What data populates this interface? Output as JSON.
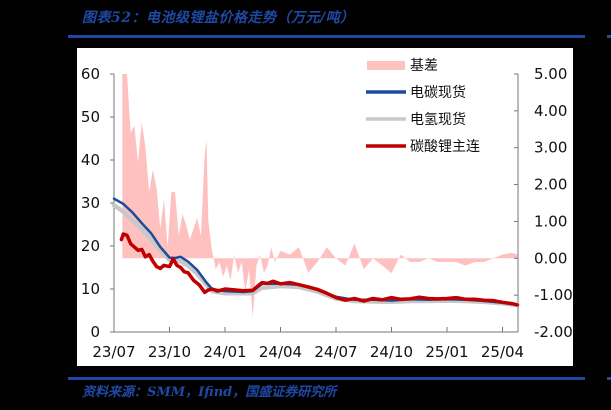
{
  "title": "图表52：电池级锂盐价格走势（万元/吨）",
  "source": "资料来源：SMM，Ifind，国盛证券研究所",
  "colors": {
    "accent": "#1f48a3",
    "basis": "#ffc0c0",
    "carbonate_spot": "#1a4da0",
    "hydroxide_spot": "#c8c8c8",
    "futures": "#c00000"
  },
  "chart_data": {
    "type": "line",
    "title": "电池级锂盐价格走势（万元/吨）",
    "xlabel": "",
    "ylabel_left": "万元/吨",
    "ylabel_right": "基差",
    "x_ticks": [
      "23/07",
      "23/10",
      "24/01",
      "24/04",
      "24/07",
      "24/10",
      "25/01",
      "25/04"
    ],
    "ylim_left": [
      0,
      60
    ],
    "yticks_left": [
      "0",
      "10",
      "20",
      "30",
      "40",
      "50",
      "60"
    ],
    "ylim_right": [
      -2,
      5
    ],
    "yticks_right": [
      "-2.00",
      "-1.00",
      "0.00",
      "1.00",
      "2.00",
      "3.00",
      "4.00",
      "5.00"
    ],
    "legend": [
      "基差",
      "电碳现货",
      "电氢现货",
      "碳酸锂主连"
    ],
    "legend_position": "upper right",
    "grid": false,
    "x_months_from_2307": true,
    "series": [
      {
        "name": "基差",
        "type": "area",
        "axis": "right",
        "x": [
          0.45,
          0.5,
          0.7,
          0.9,
          1.1,
          1.3,
          1.5,
          1.7,
          1.9,
          2.1,
          2.3,
          2.5,
          2.7,
          2.9,
          3.1,
          3.3,
          3.5,
          3.7,
          3.9,
          4.1,
          4.3,
          4.5,
          4.7,
          4.9,
          5.0,
          5.1,
          5.3,
          5.5,
          5.7,
          5.9,
          6.1,
          6.3,
          6.5,
          6.7,
          6.9,
          7.1,
          7.3,
          7.5,
          7.7,
          7.9,
          8.1,
          8.3,
          8.5,
          8.7,
          9.0,
          9.5,
          10.0,
          10.5,
          11.0,
          11.5,
          12.0,
          12.5,
          13.0,
          13.5,
          14.0,
          14.5,
          15.0,
          15.5,
          16.0,
          16.5,
          17.0,
          17.5,
          18.0,
          18.5,
          19.0,
          19.5,
          20.0,
          20.5,
          21.0,
          21.5,
          21.8
        ],
        "values": [
          5.0,
          5.0,
          5.0,
          3.4,
          3.6,
          2.6,
          3.7,
          3.0,
          1.8,
          2.4,
          1.9,
          0.8,
          1.6,
          0.3,
          1.8,
          1.8,
          0.6,
          1.2,
          0.9,
          0.5,
          0.8,
          1.1,
          0.6,
          2.8,
          3.2,
          1.0,
          0.2,
          -0.3,
          -0.1,
          -0.5,
          -0.2,
          -0.6,
          0.1,
          -0.4,
          -0.1,
          -0.9,
          -0.3,
          -1.6,
          -0.2,
          0.1,
          -0.4,
          -0.2,
          0.3,
          -0.1,
          0.2,
          0.1,
          0.3,
          -0.4,
          -0.1,
          0.3,
          0.0,
          -0.2,
          0.4,
          -0.3,
          0.0,
          -0.2,
          -0.4,
          0.1,
          -0.1,
          -0.1,
          0.0,
          -0.1,
          -0.1,
          -0.1,
          -0.2,
          -0.1,
          -0.1,
          0.0,
          0.1,
          0.15,
          0.1
        ]
      },
      {
        "name": "电氢现货",
        "type": "line",
        "axis": "left",
        "x": [
          0,
          0.5,
          1.0,
          1.5,
          2.0,
          2.5,
          3.0,
          3.3,
          3.6,
          4.0,
          4.5,
          5.0,
          5.3,
          6.0,
          7.0,
          7.5,
          8.0,
          9.0,
          10.0,
          11.0,
          12.0,
          13.0,
          14.0,
          15.0,
          16.0,
          17.0,
          18.0,
          19.0,
          20.0,
          21.0,
          21.8
        ],
        "values": [
          29.5,
          28.0,
          26.0,
          24.0,
          21.5,
          19.0,
          16.8,
          16.5,
          16.5,
          15.5,
          13.5,
          11.0,
          9.5,
          9.0,
          9.0,
          9.0,
          10.3,
          10.7,
          10.5,
          9.4,
          7.8,
          7.2,
          7.1,
          7.0,
          7.2,
          7.2,
          7.3,
          7.2,
          7.0,
          6.7,
          6.3
        ]
      },
      {
        "name": "电碳现货",
        "type": "line",
        "axis": "left",
        "x": [
          0,
          0.5,
          1.0,
          1.5,
          2.0,
          2.5,
          3.0,
          3.3,
          3.6,
          4.0,
          4.5,
          5.0,
          5.3,
          6.0,
          7.0,
          7.5,
          8.0,
          9.0,
          10.0,
          11.0,
          12.0,
          13.0,
          14.0,
          15.0,
          16.0,
          17.0,
          18.0,
          19.0,
          20.0,
          21.0,
          21.8
        ],
        "values": [
          31.0,
          29.8,
          27.8,
          25.3,
          23.0,
          19.8,
          17.3,
          17.2,
          17.5,
          16.4,
          14.4,
          11.5,
          10.0,
          9.5,
          9.3,
          9.5,
          11.2,
          11.2,
          11.0,
          9.8,
          8.2,
          7.5,
          7.5,
          7.3,
          7.6,
          7.5,
          7.6,
          7.5,
          7.2,
          6.8,
          6.3
        ]
      },
      {
        "name": "碳酸锂主连",
        "type": "line",
        "axis": "left",
        "x": [
          0.4,
          0.5,
          0.7,
          0.9,
          1.1,
          1.3,
          1.5,
          1.7,
          1.9,
          2.1,
          2.3,
          2.5,
          2.7,
          3.0,
          3.2,
          3.4,
          3.6,
          3.8,
          4.0,
          4.3,
          4.6,
          4.9,
          5.1,
          5.3,
          5.6,
          6.0,
          6.5,
          7.0,
          7.5,
          7.8,
          8.0,
          8.3,
          8.6,
          9.0,
          9.5,
          10.0,
          10.5,
          11.0,
          11.5,
          12.0,
          12.5,
          13.0,
          13.5,
          14.0,
          14.5,
          15.0,
          15.5,
          16.0,
          16.5,
          17.0,
          17.5,
          18.0,
          18.5,
          19.0,
          19.5,
          20.0,
          20.5,
          21.0,
          21.5,
          21.8
        ],
        "values": [
          21.5,
          22.8,
          22.5,
          20.5,
          19.8,
          19.0,
          19.2,
          17.5,
          18.0,
          16.5,
          15.2,
          14.8,
          15.5,
          15.2,
          17.0,
          15.5,
          15.0,
          14.0,
          13.8,
          12.0,
          11.0,
          9.2,
          9.8,
          10.0,
          9.5,
          10.0,
          9.8,
          9.6,
          9.7,
          10.8,
          11.5,
          11.3,
          11.8,
          11.2,
          11.5,
          11.0,
          10.5,
          9.9,
          9.0,
          8.0,
          7.4,
          7.8,
          7.2,
          7.8,
          7.5,
          8.0,
          7.6,
          7.7,
          8.1,
          7.8,
          7.7,
          7.8,
          8.0,
          7.6,
          7.6,
          7.4,
          7.3,
          6.9,
          6.6,
          6.3
        ]
      }
    ]
  }
}
